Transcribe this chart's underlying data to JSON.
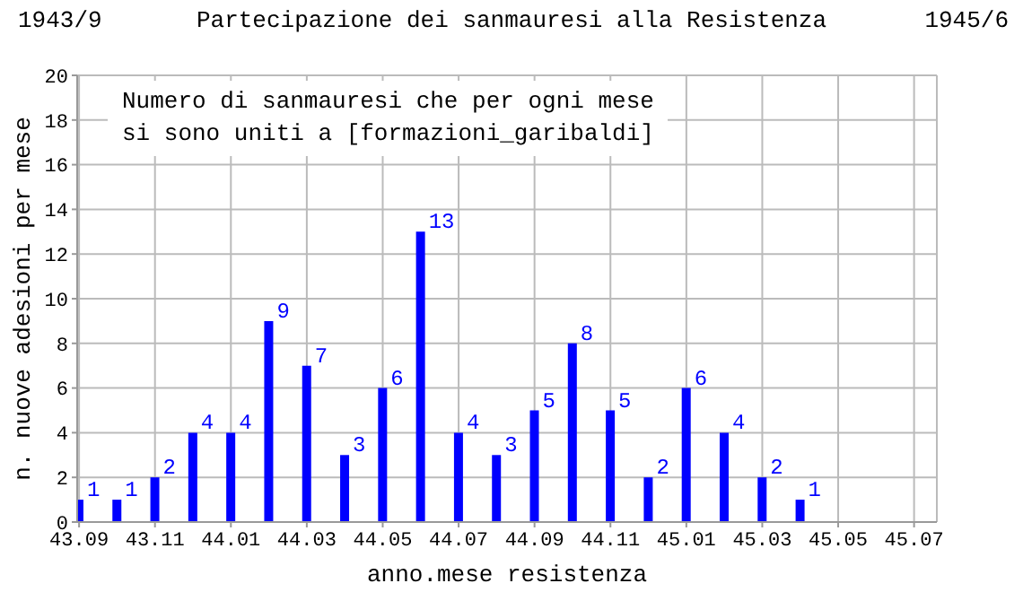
{
  "chart_data": {
    "type": "bar",
    "title": "Partecipazione dei sanmauresi alla Resistenza",
    "xlabel": "anno.mese resistenza",
    "ylabel": "n. nuove adesioni per mese",
    "annotations": [
      "1943/9",
      "1945/6",
      "Numero di sanmauresi che per ogni mese\nsi sono uniti a [formazioni_garibaldi]"
    ],
    "categories": [
      "43.09",
      null,
      "43.11",
      null,
      "44.01",
      null,
      "44.03",
      null,
      "44.05",
      null,
      "44.07",
      null,
      "44.09",
      null,
      "44.11",
      null,
      "45.01",
      null,
      "45.03",
      null,
      "45.05",
      null,
      "45.07"
    ],
    "values": [
      1,
      1,
      2,
      4,
      4,
      9,
      7,
      3,
      6,
      13,
      4,
      3,
      5,
      8,
      5,
      2,
      6,
      4,
      2,
      1,
      0,
      0,
      0
    ],
    "value_labels": [
      "1",
      "1",
      "2",
      "4",
      "4",
      "9",
      "7",
      "3",
      "6",
      "13",
      "4",
      "3",
      "5",
      "8",
      "5",
      "2",
      "6",
      "4",
      "2",
      "1",
      null,
      null,
      null
    ],
    "color": "#0000ff",
    "ylim": [
      0,
      20
    ],
    "yticks": [
      0,
      2,
      4,
      6,
      8,
      10,
      12,
      14,
      16,
      18,
      20
    ],
    "grid": true
  }
}
